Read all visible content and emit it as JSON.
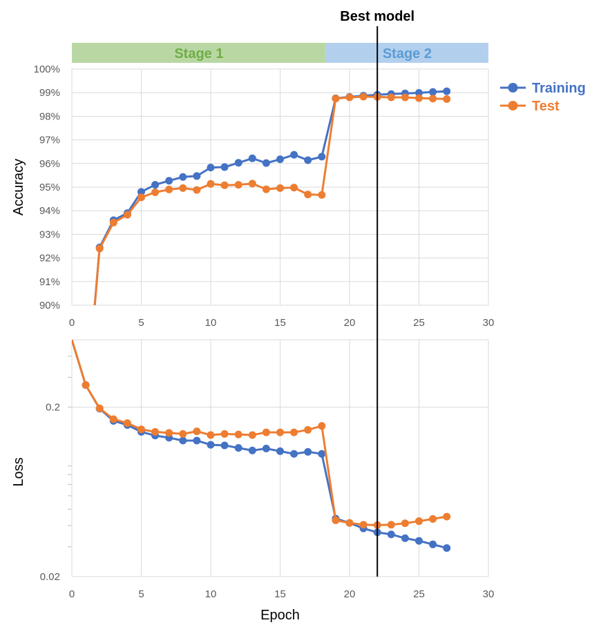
{
  "chart_data": [
    {
      "type": "line",
      "ylabel": "Accuracy",
      "ylim": [
        0.9,
        1.0
      ],
      "yticks": [
        "90%",
        "91%",
        "92%",
        "93%",
        "94%",
        "95%",
        "96%",
        "97%",
        "98%",
        "99%",
        "100%"
      ],
      "xlim": [
        0,
        30
      ],
      "xticks": [
        "0",
        "5",
        "10",
        "15",
        "20",
        "25",
        "30"
      ],
      "grid": true,
      "legend_position": "right",
      "series": [
        {
          "name": "Training",
          "color": "#4472C4",
          "x": [
            1,
            2,
            3,
            4,
            5,
            6,
            7,
            8,
            9,
            10,
            11,
            12,
            13,
            14,
            15,
            16,
            17,
            18,
            19,
            20,
            21,
            22,
            23,
            24,
            25,
            26,
            27
          ],
          "y": [
            0.855,
            0.9245,
            0.936,
            0.939,
            0.948,
            0.951,
            0.9527,
            0.9543,
            0.9547,
            0.9583,
            0.9585,
            0.9603,
            0.9622,
            0.9602,
            0.9618,
            0.9637,
            0.9614,
            0.9629,
            0.9876,
            0.9882,
            0.9887,
            0.9891,
            0.9894,
            0.9897,
            0.9899,
            0.9903,
            0.9906
          ]
        },
        {
          "name": "Test",
          "color": "#ED7D31",
          "x": [
            1,
            2,
            3,
            4,
            5,
            6,
            7,
            8,
            9,
            10,
            11,
            12,
            13,
            14,
            15,
            16,
            17,
            18,
            19,
            20,
            21,
            22,
            23,
            24,
            25,
            26,
            27
          ],
          "y": [
            0.855,
            0.924,
            0.935,
            0.9383,
            0.9457,
            0.9478,
            0.949,
            0.9496,
            0.9488,
            0.9514,
            0.9508,
            0.951,
            0.9515,
            0.9491,
            0.9496,
            0.9498,
            0.9469,
            0.9467,
            0.9875,
            0.988,
            0.9883,
            0.9882,
            0.988,
            0.988,
            0.9877,
            0.9875,
            0.9873
          ]
        }
      ]
    },
    {
      "type": "line",
      "xlabel": "Epoch",
      "ylabel": "Loss",
      "yscale": "log",
      "ylim": [
        0.02,
        0.5
      ],
      "yticks": [
        "0.02",
        "0.2"
      ],
      "xlim": [
        0,
        30
      ],
      "xticks": [
        "0",
        "5",
        "10",
        "15",
        "20",
        "25",
        "30"
      ],
      "grid": true,
      "series": [
        {
          "name": "Training",
          "color": "#4472C4",
          "x": [
            0,
            1,
            2,
            3,
            4,
            5,
            6,
            7,
            8,
            9,
            10,
            11,
            12,
            13,
            14,
            15,
            16,
            17,
            18,
            19,
            20,
            21,
            22,
            23,
            24,
            25,
            26,
            27
          ],
          "y": [
            0.5,
            0.27,
            0.196,
            0.166,
            0.157,
            0.143,
            0.136,
            0.132,
            0.127,
            0.127,
            0.12,
            0.119,
            0.115,
            0.111,
            0.114,
            0.11,
            0.106,
            0.109,
            0.106,
            0.044,
            0.0415,
            0.0385,
            0.0365,
            0.0355,
            0.0337,
            0.0325,
            0.031,
            0.0295
          ]
        },
        {
          "name": "Test",
          "color": "#ED7D31",
          "x": [
            0,
            1,
            2,
            3,
            4,
            5,
            6,
            7,
            8,
            9,
            10,
            11,
            12,
            13,
            14,
            15,
            16,
            17,
            18,
            19,
            20,
            21,
            22,
            23,
            24,
            25,
            26,
            27
          ],
          "y": [
            0.5,
            0.27,
            0.197,
            0.17,
            0.161,
            0.148,
            0.143,
            0.141,
            0.139,
            0.144,
            0.137,
            0.139,
            0.138,
            0.137,
            0.142,
            0.142,
            0.142,
            0.147,
            0.155,
            0.043,
            0.0415,
            0.0405,
            0.0403,
            0.0405,
            0.0413,
            0.0425,
            0.0438,
            0.0452
          ]
        }
      ]
    }
  ],
  "annotations": {
    "best_model_label": "Best model",
    "best_model_epoch": 22,
    "stage1_label": "Stage 1",
    "stage1_color": "#B9D7A3",
    "stage1_text_color": "#70AD47",
    "stage1_range": [
      0,
      18.3
    ],
    "stage2_label": "Stage 2",
    "stage2_color": "#B3CFEE",
    "stage2_text_color": "#5B9BD5",
    "stage2_range": [
      18.3,
      30
    ]
  },
  "legend": {
    "items": [
      {
        "label": "Training",
        "color": "#4472C4"
      },
      {
        "label": "Test",
        "color": "#ED7D31"
      }
    ]
  }
}
